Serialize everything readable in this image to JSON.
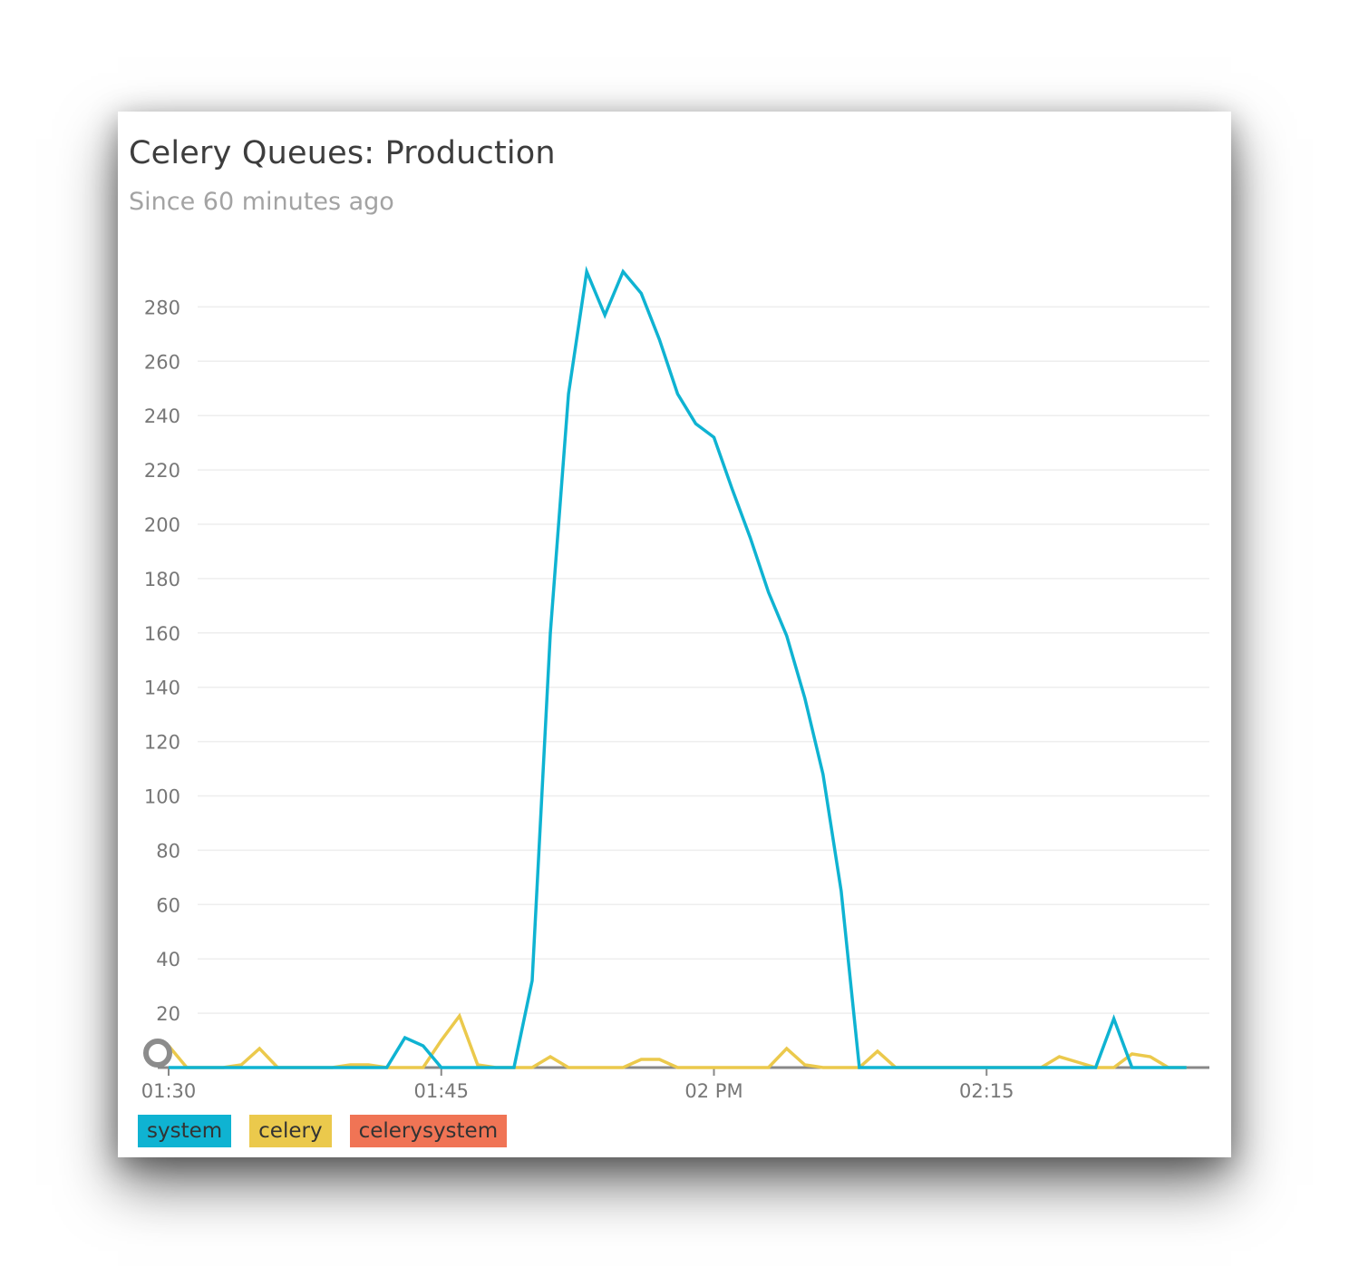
{
  "header": {
    "title": "Celery Queues: Production",
    "subtitle": "Since 60 minutes ago"
  },
  "chart_data": {
    "type": "line",
    "title": "Celery Queues: Production",
    "subtitle": "Since 60 minutes ago",
    "xlabel": "",
    "ylabel": "",
    "ylim": [
      0,
      280
    ],
    "y_ticks": [
      20,
      40,
      60,
      80,
      100,
      120,
      140,
      160,
      180,
      200,
      220,
      240,
      260,
      280
    ],
    "x_ticks": [
      {
        "label": "01:30",
        "minute": 0
      },
      {
        "label": "01:45",
        "minute": 15
      },
      {
        "label": "02 PM",
        "minute": 30
      },
      {
        "label": "02:15",
        "minute": 45
      }
    ],
    "x_minutes": [
      0,
      1,
      2,
      3,
      4,
      5,
      6,
      7,
      8,
      9,
      10,
      11,
      12,
      13,
      14,
      15,
      16,
      17,
      18,
      19,
      20,
      21,
      22,
      23,
      24,
      25,
      26,
      27,
      28,
      29,
      30,
      31,
      32,
      33,
      34,
      35,
      36,
      37,
      38,
      39,
      40,
      41,
      42,
      43,
      44,
      45,
      46,
      47,
      48,
      49,
      50,
      51,
      52,
      53,
      54,
      55,
      56
    ],
    "grid": true,
    "legend_position": "bottom-left",
    "series": [
      {
        "name": "system",
        "color": "#0fb3d2",
        "values": [
          0,
          0,
          0,
          0,
          0,
          0,
          0,
          0,
          0,
          0,
          0,
          0,
          0,
          11,
          8,
          0,
          0,
          0,
          0,
          0,
          32,
          160,
          248,
          293,
          277,
          293,
          285,
          268,
          248,
          237,
          232,
          213,
          195,
          175,
          159,
          136,
          108,
          65,
          0,
          0,
          0,
          0,
          0,
          0,
          0,
          0,
          0,
          0,
          0,
          0,
          0,
          0,
          18,
          0,
          0,
          0,
          0
        ]
      },
      {
        "name": "celery",
        "color": "#ebc94c",
        "values": [
          8,
          0,
          0,
          0,
          1,
          7,
          0,
          0,
          0,
          0,
          1,
          1,
          0,
          0,
          0,
          10,
          19,
          1,
          0,
          0,
          0,
          4,
          0,
          0,
          0,
          0,
          3,
          3,
          0,
          0,
          0,
          0,
          0,
          0,
          7,
          1,
          0,
          0,
          0,
          6,
          0,
          0,
          0,
          0,
          0,
          0,
          0,
          0,
          0,
          4,
          2,
          0,
          0,
          5,
          4,
          0,
          0
        ]
      },
      {
        "name": "celerysystem",
        "color": "#f07455",
        "values": []
      }
    ]
  },
  "legend": [
    {
      "label": "system",
      "color": "#0fb3d2"
    },
    {
      "label": "celery",
      "color": "#ebc94c"
    },
    {
      "label": "celerysystem",
      "color": "#f07455"
    }
  ]
}
